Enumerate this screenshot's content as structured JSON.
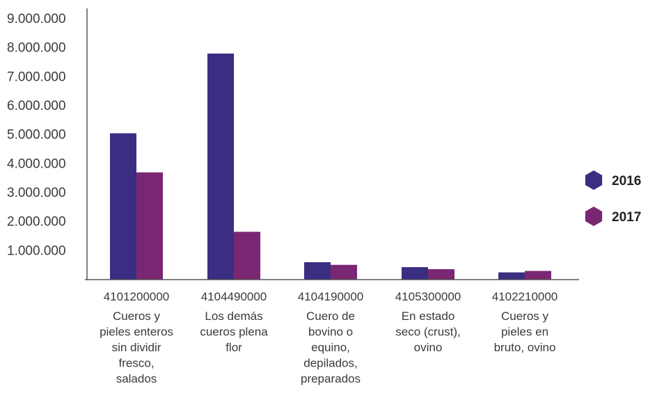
{
  "chart_data": {
    "type": "bar",
    "title": "",
    "xlabel": "",
    "ylabel": "",
    "ylim": [
      0,
      9000000
    ],
    "y_ticks": [
      {
        "value": 1000000,
        "label": "1.000.000"
      },
      {
        "value": 2000000,
        "label": "2.000.000"
      },
      {
        "value": 3000000,
        "label": "3.000.000"
      },
      {
        "value": 4000000,
        "label": "4.000.000"
      },
      {
        "value": 5000000,
        "label": "5.000.000"
      },
      {
        "value": 6000000,
        "label": "6.000.000"
      },
      {
        "value": 7000000,
        "label": "7.000.000"
      },
      {
        "value": 8000000,
        "label": "8.000.000"
      },
      {
        "value": 9000000,
        "label": "9.000.000"
      }
    ],
    "grid": false,
    "legend_position": "right",
    "categories": [
      {
        "code": "4101200000",
        "description": [
          "Cueros y",
          "pieles enteros",
          "sin dividir",
          "fresco,",
          "salados"
        ]
      },
      {
        "code": "4104490000",
        "description": [
          "Los demás",
          "cueros plena",
          "flor"
        ]
      },
      {
        "code": "4104190000",
        "description": [
          "Cuero de",
          "bovino o",
          "equino,",
          "depilados,",
          "preparados"
        ]
      },
      {
        "code": "4105300000",
        "description": [
          "En estado",
          "seco (crust),",
          "ovino"
        ]
      },
      {
        "code": "4102210000",
        "description": [
          "Cueros y",
          "pieles en",
          "bruto, ovino"
        ]
      }
    ],
    "series": [
      {
        "name": "2016",
        "color": "#3b2d82",
        "values": [
          5050000,
          7800000,
          600000,
          430000,
          250000
        ]
      },
      {
        "name": "2017",
        "color": "#7a2773",
        "values": [
          3700000,
          1650000,
          510000,
          360000,
          300000
        ]
      }
    ]
  }
}
